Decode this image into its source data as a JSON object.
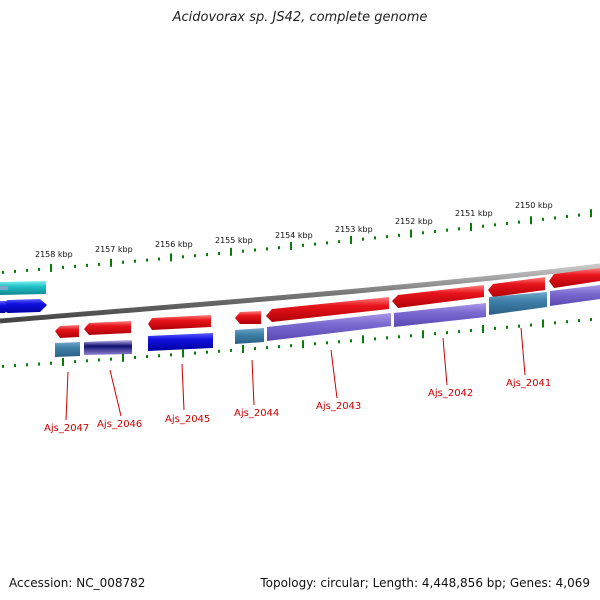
{
  "title": "Acidovorax sp. JS42, complete genome",
  "footer": {
    "accession": "Accession: NC_008782",
    "stats": "Topology: circular; Length: 4,448,856 bp; Genes: 4,069"
  },
  "kbp_labels": [
    "2158 kbp",
    "2157 kbp",
    "2156 kbp",
    "2155 kbp",
    "2154 kbp",
    "2153 kbp",
    "2152 kbp",
    "2151 kbp",
    "2150 kbp"
  ],
  "gene_labels": [
    "Ajs_2047",
    "Ajs_2046",
    "Ajs_2045",
    "Ajs_2044",
    "Ajs_2043",
    "Ajs_2042",
    "Ajs_2041"
  ],
  "colors": {
    "cds_red": "#e8141b",
    "cds_blue": "#1010e0",
    "cds_purple": "#7a6ad0",
    "cds_teal": "#3f7fa8",
    "cds_cyan": "#20c0c8",
    "ticks": "#0a7a0a",
    "label_red": "#cc0000",
    "backbone": "#808080"
  }
}
